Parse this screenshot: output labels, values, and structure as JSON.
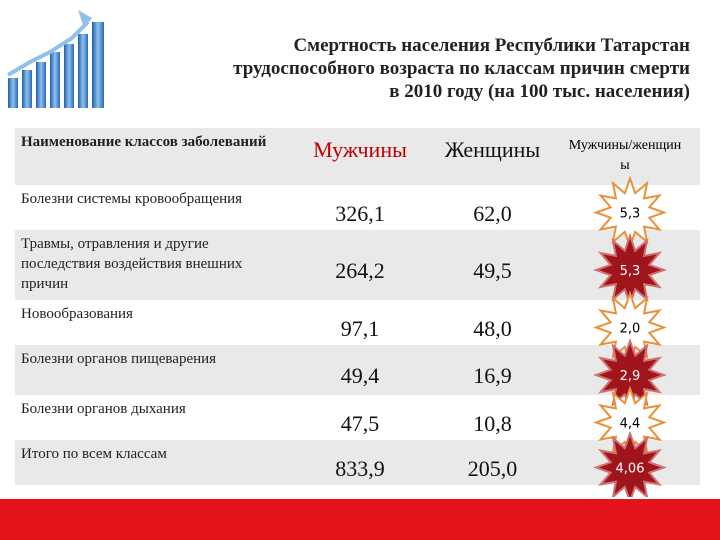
{
  "header": {
    "title": [
      "Смертность населения Республики Татарстан",
      "трудоспособного возраста по классам причин смерти",
      "в 2010 году (на 100 тыс. населения)"
    ]
  },
  "table": {
    "columns": [
      "Наименование классов заболеваний",
      "Мужчины",
      "Женщины",
      "Мужчины/женщины"
    ],
    "rows": [
      [
        "Болезни системы кровообращения",
        "326,1",
        "62,0",
        "5,3"
      ],
      [
        "Травмы, отравления и другие последствия воздействия внешних причин",
        "264,2",
        "49,5",
        "5,3"
      ],
      [
        "Новообразования",
        "97,1",
        "48,0",
        "2,0"
      ],
      [
        "Болезни органов пищеварения",
        "49,4",
        "16,9",
        "2,9"
      ],
      [
        "Болезни органов дыхания",
        "47,5",
        "10,8",
        "4,4"
      ],
      [
        "Итого по всем классам",
        "833,9",
        "205,0",
        "4,06"
      ]
    ]
  }
}
